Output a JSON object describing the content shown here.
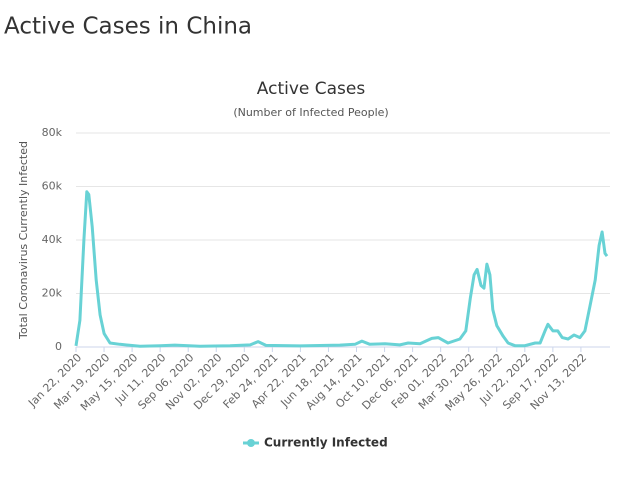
{
  "page_title": "Active Cases in China",
  "chart_data": {
    "type": "line",
    "title": "Active Cases",
    "subtitle": "(Number of Infected People)",
    "y_label": "Total Coronavirus Currently Infected",
    "x": [
      "Jan 22, 2020",
      "Jan 30, 2020",
      "Feb 7, 2020",
      "Feb 13, 2020",
      "Feb 17, 2020",
      "Feb 24, 2020",
      "Mar 3, 2020",
      "Mar 11, 2020",
      "Mar 19, 2020",
      "Mar 31, 2020",
      "Apr 20, 2020",
      "May 31, 2020",
      "Jul 11, 2020",
      "Aug 10, 2020",
      "Sep 30, 2020",
      "Nov 30, 2020",
      "Jan 10, 2021",
      "Jan 26, 2021",
      "Feb 11, 2021",
      "Apr 21, 2021",
      "Jul 11, 2021",
      "Aug 11, 2021",
      "Aug 25, 2021",
      "Sep 10, 2021",
      "Oct 11, 2021",
      "Nov 10, 2021",
      "Nov 27, 2021",
      "Dec 21, 2021",
      "Jan 14, 2022",
      "Jan 27, 2022",
      "Feb 16, 2022",
      "Mar 12, 2022",
      "Mar 24, 2022",
      "Apr 2, 2022",
      "Apr 10, 2022",
      "Apr 16, 2022",
      "Apr 24, 2022",
      "Apr 30, 2022",
      "May 6, 2022",
      "May 12, 2022",
      "May 18, 2022",
      "May 26, 2022",
      "Jun 8, 2022",
      "Jun 18, 2022",
      "Jul 2, 2022",
      "Jul 22, 2022",
      "Aug 12, 2022",
      "Aug 22, 2022",
      "Sep 1, 2022",
      "Sep 7, 2022",
      "Sep 17, 2022",
      "Sep 27, 2022",
      "Oct 6, 2022",
      "Oct 18, 2022",
      "Oct 30, 2022",
      "Nov 11, 2022",
      "Nov 21, 2022",
      "Dec 1, 2022",
      "Dec 12, 2022",
      "Dec 20, 2022",
      "Dec 26, 2022",
      "Jan 1, 2023",
      "Jan 5, 2023"
    ],
    "series": [
      {
        "name": "Currently Infected",
        "color": "#68d2d5",
        "values": [
          400,
          10000,
          40000,
          58000,
          57000,
          45000,
          25000,
          12000,
          5000,
          1500,
          1000,
          300,
          500,
          700,
          300,
          500,
          800,
          2000,
          600,
          400,
          700,
          1000,
          2200,
          1000,
          1200,
          800,
          1500,
          1200,
          3200,
          3500,
          1500,
          3000,
          6000,
          18000,
          27000,
          29000,
          23000,
          22000,
          31000,
          27000,
          14000,
          8000,
          4000,
          1500,
          500,
          500,
          1500,
          1500,
          6000,
          8500,
          6000,
          6000,
          3500,
          3000,
          4500,
          3500,
          6000,
          15000,
          25000,
          38000,
          43000,
          35000,
          34000
        ]
      }
    ],
    "xlim": [
      "Jan 22, 2020",
      "Jan 5, 2023"
    ],
    "xticks": [
      "Jan 22, 2020",
      "Mar 19, 2020",
      "May 15, 2020",
      "Jul 11, 2020",
      "Sep 06, 2020",
      "Nov 02, 2020",
      "Dec 29, 2020",
      "Feb 24, 2021",
      "Apr 22, 2021",
      "Jun 18, 2021",
      "Aug 14, 2021",
      "Oct 10, 2021",
      "Dec 06, 2021",
      "Feb 01, 2022",
      "Mar 30, 2022",
      "May 26, 2022",
      "Jul 22, 2022",
      "Sep 17, 2022",
      "Nov 13, 2022"
    ],
    "ylim": [
      0,
      80000
    ],
    "yticks": [
      0,
      {
        "value": 20000,
        "label": "20k"
      },
      {
        "value": 40000,
        "label": "40k"
      },
      {
        "value": 60000,
        "label": "60k"
      },
      {
        "value": 80000,
        "label": "80k"
      }
    ],
    "grid": true,
    "legend": "bottom"
  }
}
